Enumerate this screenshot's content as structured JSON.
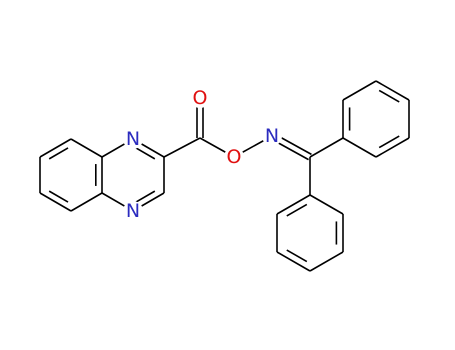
{
  "atoms": [
    "N",
    "N",
    "O",
    "O",
    "N"
  ]
}
